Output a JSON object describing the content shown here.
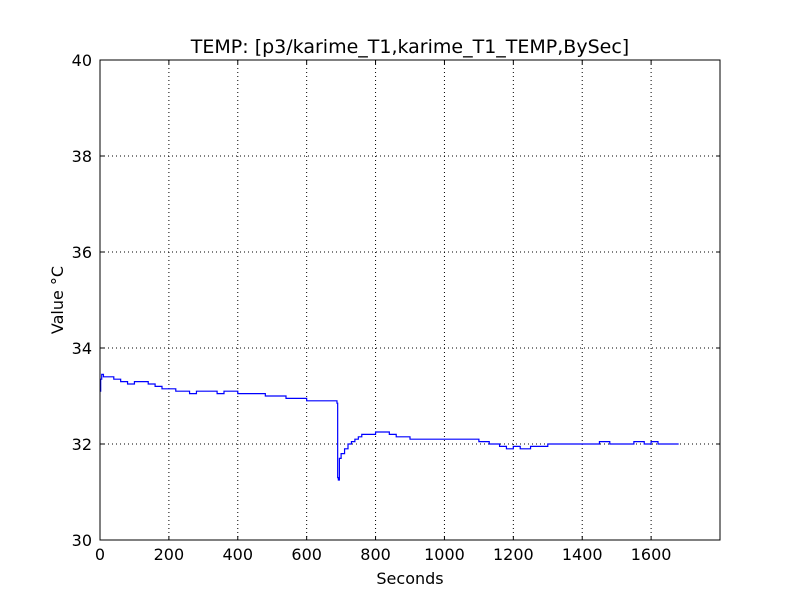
{
  "chart_data": {
    "type": "line",
    "title": "TEMP: [p3/karime_T1,karime_T1_TEMP,BySec]",
    "xlabel": "Seconds",
    "ylabel": "Value °C",
    "xlim": [
      0,
      1800
    ],
    "ylim": [
      30,
      40
    ],
    "xticks": [
      0,
      200,
      400,
      600,
      800,
      1000,
      1200,
      1400,
      1600
    ],
    "yticks": [
      30,
      32,
      34,
      36,
      38,
      40
    ],
    "grid": true,
    "line_color": "#0000ff",
    "series": [
      {
        "values_x": [
          0,
          2,
          5,
          10,
          20,
          40,
          60,
          80,
          100,
          120,
          140,
          160,
          180,
          200,
          220,
          240,
          260,
          280,
          300,
          320,
          340,
          360,
          380,
          400,
          420,
          440,
          460,
          480,
          500,
          520,
          540,
          560,
          580,
          600,
          620,
          640,
          660,
          680,
          688,
          690,
          692,
          695,
          700,
          710,
          720,
          730,
          740,
          750,
          760,
          780,
          800,
          820,
          840,
          860,
          880,
          900,
          950,
          1000,
          1050,
          1100,
          1130,
          1160,
          1180,
          1200,
          1220,
          1250,
          1280,
          1300,
          1320,
          1350,
          1400,
          1420,
          1450,
          1480,
          1500,
          1520,
          1550,
          1580,
          1600,
          1620,
          1650,
          1680
        ],
        "values_y": [
          33.1,
          33.35,
          33.45,
          33.4,
          33.4,
          33.35,
          33.3,
          33.25,
          33.3,
          33.3,
          33.25,
          33.2,
          33.15,
          33.15,
          33.1,
          33.1,
          33.05,
          33.1,
          33.1,
          33.1,
          33.05,
          33.1,
          33.1,
          33.05,
          33.05,
          33.05,
          33.05,
          33.0,
          33.0,
          33.0,
          32.95,
          32.95,
          32.95,
          32.9,
          32.9,
          32.9,
          32.9,
          32.9,
          32.85,
          31.3,
          31.25,
          31.7,
          31.8,
          31.9,
          32.0,
          32.05,
          32.1,
          32.15,
          32.2,
          32.2,
          32.25,
          32.25,
          32.2,
          32.15,
          32.15,
          32.1,
          32.1,
          32.1,
          32.1,
          32.05,
          32.0,
          31.95,
          31.9,
          31.95,
          31.9,
          31.95,
          31.95,
          32.0,
          32.0,
          32.0,
          32.0,
          32.0,
          32.05,
          32.0,
          32.0,
          32.0,
          32.05,
          32.0,
          32.05,
          32.0,
          32.0,
          32.0
        ]
      }
    ]
  }
}
